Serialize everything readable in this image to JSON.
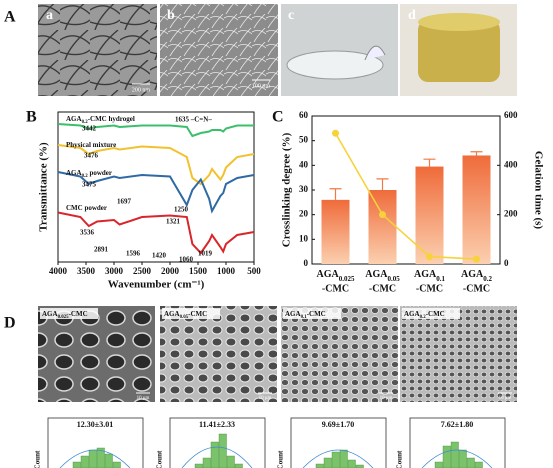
{
  "panel_letters": [
    "A",
    "B",
    "C",
    "D"
  ],
  "photos": {
    "labels": [
      "a",
      "b",
      "c",
      "d"
    ],
    "scale_bars": [
      "200 nm",
      "100 nm"
    ]
  },
  "sem": {
    "labels": [
      [
        "AGA",
        "0.025",
        "-CMC"
      ],
      [
        "AGA",
        "0.05",
        "-CMC"
      ],
      [
        "AGA",
        "0.1",
        "-CMC"
      ],
      [
        "AGA",
        "0.2",
        "-CMC"
      ]
    ],
    "scale_bar": "10 μm"
  },
  "histograms": {
    "titles": [
      "12.30±3.01",
      "11.41±2.33",
      "9.69±1.70",
      "7.62±1.80"
    ],
    "y_label": "Count"
  },
  "chart_data": [
    {
      "type": "line",
      "x_label": "Wavenumber (cm⁻¹)",
      "y_label": "Transmittance (%)",
      "x": [
        4000,
        3600,
        3450,
        3300,
        3000,
        2900,
        2500,
        2000,
        1700,
        1600,
        1450,
        1300,
        1250,
        1100,
        1050,
        1000,
        800,
        500
      ],
      "xlim": [
        4000,
        500
      ],
      "xticks": [
        4000,
        3500,
        3000,
        2500,
        2000,
        1500,
        1000,
        500
      ],
      "ylim": [
        0,
        100
      ],
      "series": [
        {
          "name": [
            "AGA",
            "0.2",
            "-CMC hydrogel"
          ],
          "color": "#3cbf6a",
          "values": [
            92,
            91,
            89,
            90,
            91,
            90,
            91,
            91,
            90,
            84,
            86,
            87,
            88,
            88,
            87,
            89,
            91,
            91
          ]
        },
        {
          "name": [
            "Physical mixture"
          ],
          "color": "#f2c12e",
          "values": [
            78,
            76,
            72,
            74,
            76,
            75,
            77,
            76,
            70,
            56,
            52,
            58,
            62,
            55,
            58,
            63,
            70,
            72
          ]
        },
        {
          "name": [
            "AGA",
            "0.2",
            " powder"
          ],
          "color": "#2f6aa5",
          "values": [
            60,
            57,
            52,
            54,
            57,
            56,
            58,
            57,
            38,
            48,
            55,
            42,
            34,
            44,
            46,
            52,
            56,
            58
          ]
        },
        {
          "name": [
            "CMC powder"
          ],
          "color": "#d8262a",
          "values": [
            33,
            30,
            24,
            27,
            28,
            25,
            30,
            31,
            30,
            12,
            6,
            14,
            18,
            10,
            7,
            12,
            18,
            20
          ]
        }
      ],
      "annotations": [
        "3442",
        "1635 –C=N–",
        "3476",
        "3475",
        "1697",
        "1250",
        "1321",
        "3536",
        "2891",
        "1596",
        "1420",
        "1060",
        "1019"
      ]
    },
    {
      "type": "bar",
      "y_label": "Crosslinking degree (%)",
      "y2_label": "Gelation time (s)",
      "categories": [
        [
          "AGA",
          "0.025",
          "-CMC"
        ],
        [
          "AGA",
          "0.05",
          "-CMC"
        ],
        [
          "AGA",
          "0.1",
          "-CMC"
        ],
        [
          "AGA",
          "0.2",
          "-CMC"
        ]
      ],
      "ylim": [
        0,
        60
      ],
      "yticks": [
        0,
        10,
        20,
        30,
        40,
        50,
        60
      ],
      "y2lim": [
        0,
        600
      ],
      "y2ticks": [
        0,
        200,
        400,
        600
      ],
      "series": [
        {
          "name": "Crosslinking degree",
          "color": "#f07a45",
          "values": [
            26,
            30,
            39.5,
            44
          ],
          "errors": [
            4.5,
            4.5,
            3,
            1.5
          ]
        },
        {
          "name": "Gelation time",
          "color": "#f7d23a",
          "axis": "y2",
          "values": [
            530,
            200,
            30,
            20
          ]
        }
      ]
    }
  ]
}
